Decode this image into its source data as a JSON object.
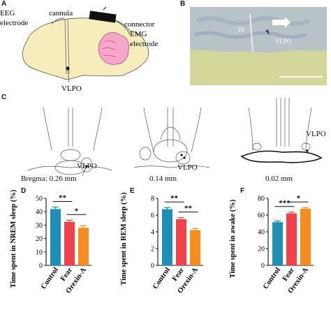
{
  "panel_letters": {
    "a": "A",
    "b": "B",
    "c": "C",
    "d": "D",
    "e": "E",
    "f": "F"
  },
  "panel_a": {
    "labels": {
      "eeg": "EEG\nelectrode",
      "cannula": "cannula",
      "connector": "connector",
      "emg": "EMG\nelectrode",
      "vlpo": "VLPO"
    }
  },
  "panel_b": {
    "labels": {
      "third_ventricle": "3V",
      "vlpo": "VLPO"
    },
    "colors": {
      "tissue": "#b8c3c8",
      "stain": "#7f8fae",
      "background": "#d4d79a"
    }
  },
  "panel_c": {
    "sections": [
      {
        "bregma_label": "Bregma: 0.26 mm",
        "vlpo_label": "VLPO"
      },
      {
        "bregma_label": "0.14 mm",
        "vlpo_label": "VLPO"
      },
      {
        "bregma_label": "0.02 mm",
        "vlpo_label": "VLPO"
      }
    ]
  },
  "colors": {
    "control": "#1e8fb5",
    "fear": "#f0424a",
    "orexin": "#f58c1e",
    "axis": "#111111"
  },
  "chart_data": [
    {
      "type": "bar",
      "panel": "D",
      "categories": [
        "Control",
        "Fear",
        "Orexin-A"
      ],
      "values": [
        42,
        32.5,
        28
      ],
      "errors": [
        1.5,
        1.2,
        1.5
      ],
      "ylabel": "Time spent in NREM sleep (%)",
      "ylim": [
        0,
        50
      ],
      "yticks": [
        "0",
        "10",
        "20",
        "30",
        "40",
        "50"
      ],
      "yticks_values": [
        0,
        10,
        20,
        30,
        40,
        50
      ],
      "significance": [
        {
          "from": 0,
          "to": 1,
          "label": "**"
        },
        {
          "from": 1,
          "to": 2,
          "label": "*"
        }
      ]
    },
    {
      "type": "bar",
      "panel": "E",
      "categories": [
        "Control",
        "Fear",
        "Orexin-A"
      ],
      "values": [
        6.7,
        5.5,
        4.2
      ],
      "errors": [
        0.2,
        0.2,
        0.2
      ],
      "ylabel": "Time spent in REM sleep (%)",
      "ylim": [
        0,
        8
      ],
      "yticks": [
        "0",
        "2",
        "4",
        "6",
        "8"
      ],
      "yticks_values": [
        0,
        2,
        4,
        6,
        8
      ],
      "significance": [
        {
          "from": 0,
          "to": 1,
          "label": "**"
        },
        {
          "from": 1,
          "to": 2,
          "label": "**"
        }
      ]
    },
    {
      "type": "bar",
      "panel": "F",
      "categories": [
        "Control",
        "Fear",
        "Orexin-A"
      ],
      "values": [
        51.5,
        62,
        67.5
      ],
      "errors": [
        1.5,
        1.5,
        1.5
      ],
      "ylabel": "Time spent in awake (%)",
      "ylim": [
        0,
        80
      ],
      "yticks": [
        "0",
        "20",
        "40",
        "60",
        "80"
      ],
      "yticks_values": [
        0,
        20,
        40,
        60,
        80
      ],
      "significance": [
        {
          "from": 0,
          "to": 1,
          "label": "***"
        },
        {
          "from": 1,
          "to": 2,
          "label": "*"
        }
      ]
    }
  ]
}
